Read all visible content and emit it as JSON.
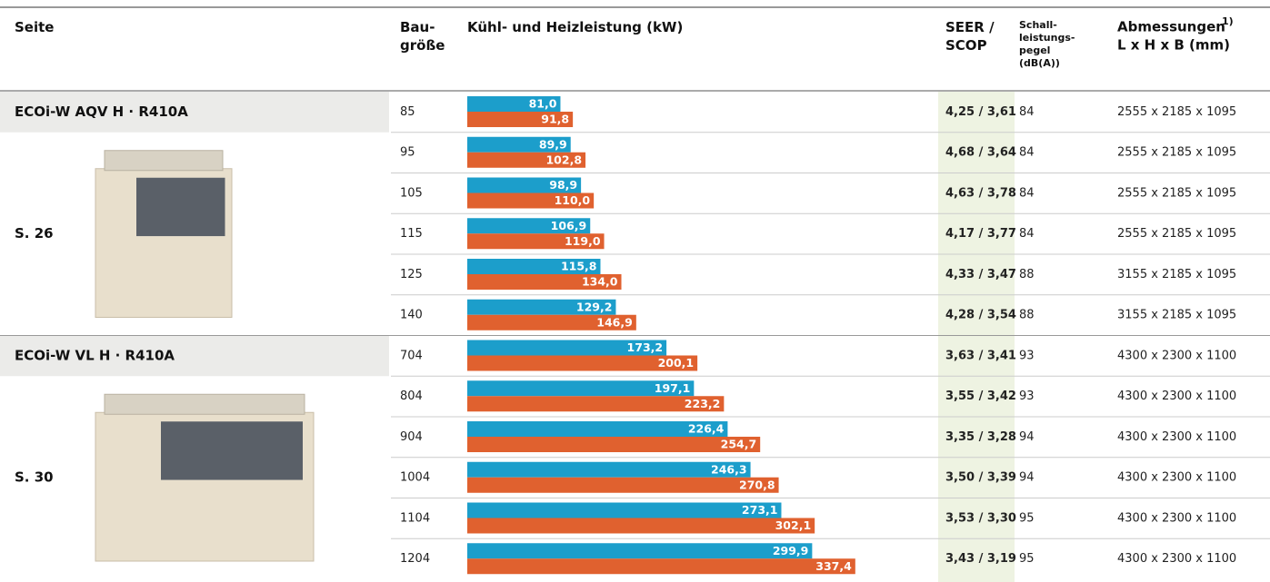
{
  "table": {
    "header": {
      "page": "Seite",
      "size": "Bau-\ngröße",
      "capacity": "Kühl- und Heizleistung (kW)",
      "efficiency": "SEER /\nSCOP",
      "sound": "Schall-\nleistungs-\npegel\n(dB(A))",
      "dimensions": "Abmessungen",
      "dimensions_note": "1)",
      "dimensions_unit": "L x H x B (mm)"
    },
    "groups": [
      {
        "name": "ECOi-W AQV H · R410A",
        "page": "S. 26",
        "rows": [
          {
            "size": "85",
            "cooling": 81.0,
            "cooling_label": "81,0",
            "heating": 91.8,
            "heating_label": "91,8",
            "efficiency": "4,25 / 3,61",
            "sound": "84",
            "dimensions": "2555 x 2185 x 1095"
          },
          {
            "size": "95",
            "cooling": 89.9,
            "cooling_label": "89,9",
            "heating": 102.8,
            "heating_label": "102,8",
            "efficiency": "4,68 / 3,64",
            "sound": "84",
            "dimensions": "2555 x 2185 x 1095"
          },
          {
            "size": "105",
            "cooling": 98.9,
            "cooling_label": "98,9",
            "heating": 110.0,
            "heating_label": "110,0",
            "efficiency": "4,63 / 3,78",
            "sound": "84",
            "dimensions": "2555 x 2185 x 1095"
          },
          {
            "size": "115",
            "cooling": 106.9,
            "cooling_label": "106,9",
            "heating": 119.0,
            "heating_label": "119,0",
            "efficiency": "4,17 / 3,77",
            "sound": "84",
            "dimensions": "2555 x 2185 x 1095"
          },
          {
            "size": "125",
            "cooling": 115.8,
            "cooling_label": "115,8",
            "heating": 134.0,
            "heating_label": "134,0",
            "efficiency": "4,33 / 3,47",
            "sound": "88",
            "dimensions": "3155 x 2185 x 1095"
          },
          {
            "size": "140",
            "cooling": 129.2,
            "cooling_label": "129,2",
            "heating": 146.9,
            "heating_label": "146,9",
            "efficiency": "4,28 / 3,54",
            "sound": "88",
            "dimensions": "3155 x 2185 x 1095"
          }
        ]
      },
      {
        "name": "ECOi-W VL H · R410A",
        "page": "S. 30",
        "rows": [
          {
            "size": "704",
            "cooling": 173.2,
            "cooling_label": "173,2",
            "heating": 200.1,
            "heating_label": "200,1",
            "efficiency": "3,63 / 3,41",
            "sound": "93",
            "dimensions": "4300 x 2300 x 1100"
          },
          {
            "size": "804",
            "cooling": 197.1,
            "cooling_label": "197,1",
            "heating": 223.2,
            "heating_label": "223,2",
            "efficiency": "3,55 / 3,42",
            "sound": "93",
            "dimensions": "4300 x 2300 x 1100"
          },
          {
            "size": "904",
            "cooling": 226.4,
            "cooling_label": "226,4",
            "heating": 254.7,
            "heating_label": "254,7",
            "efficiency": "3,35 / 3,28",
            "sound": "94",
            "dimensions": "4300 x 2300 x 1100"
          },
          {
            "size": "1004",
            "cooling": 246.3,
            "cooling_label": "246,3",
            "heating": 270.8,
            "heating_label": "270,8",
            "efficiency": "3,50 / 3,39",
            "sound": "94",
            "dimensions": "4300 x 2300 x 1100"
          },
          {
            "size": "1104",
            "cooling": 273.1,
            "cooling_label": "273,1",
            "heating": 302.1,
            "heating_label": "302,1",
            "efficiency": "3,53 / 3,30",
            "sound": "95",
            "dimensions": "4300 x 2300 x 1100"
          },
          {
            "size": "1204",
            "cooling": 299.9,
            "cooling_label": "299,9",
            "heating": 337.4,
            "heating_label": "337,4",
            "efficiency": "3,43 / 3,19",
            "sound": "95",
            "dimensions": "4300 x 2300 x 1100"
          }
        ]
      }
    ]
  }
}
